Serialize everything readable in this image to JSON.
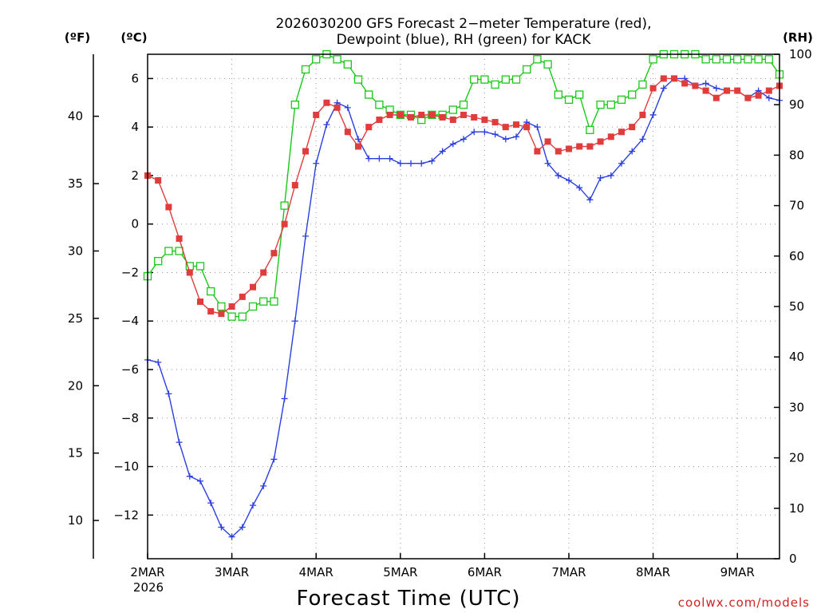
{
  "chart_data": {
    "type": "line",
    "title_line1": "2026030200 GFS Forecast 2−meter Temperature (red),",
    "title_line2": "Dewpoint (blue), RH (green) for KACK",
    "xlabel": "Forecast Time (UTC)",
    "year_label": "2026",
    "credit": "coolwx.com/models",
    "unit_labels": {
      "fahrenheit": "(ºF)",
      "celsius": "(ºC)",
      "rh": "(RH)"
    },
    "x_ticks": [
      {
        "day": 0,
        "label": "2MAR"
      },
      {
        "day": 1,
        "label": "3MAR"
      },
      {
        "day": 2,
        "label": "4MAR"
      },
      {
        "day": 3,
        "label": "5MAR"
      },
      {
        "day": 4,
        "label": "6MAR"
      },
      {
        "day": 5,
        "label": "7MAR"
      },
      {
        "day": 6,
        "label": "8MAR"
      },
      {
        "day": 7,
        "label": "9MAR"
      }
    ],
    "xlim_days": [
      0,
      7.5
    ],
    "ylim_celsius": [
      -13.8,
      7.0
    ],
    "ylim_rh": [
      0,
      100
    ],
    "y_ticks_celsius": [
      6,
      4,
      2,
      0,
      -2,
      -4,
      -6,
      -8,
      -10,
      -12
    ],
    "y_tick_labels_celsius": [
      "6",
      "4",
      "2",
      "0",
      "−2",
      "−4",
      "−6",
      "−8",
      "−10",
      "−12"
    ],
    "y_ticks_fahrenheit": [
      10,
      15,
      20,
      25,
      30,
      35,
      40
    ],
    "y_ticks_rh": [
      0,
      10,
      20,
      30,
      40,
      50,
      60,
      70,
      80,
      90,
      100
    ],
    "series": [
      {
        "name": "Temperature",
        "unit": "C",
        "color": "#e03c3c",
        "marker": "filled-square",
        "x": [
          0,
          0.125,
          0.25,
          0.375,
          0.5,
          0.625,
          0.75,
          0.875,
          1,
          1.125,
          1.25,
          1.375,
          1.5,
          1.625,
          1.75,
          1.875,
          2,
          2.125,
          2.25,
          2.375,
          2.5,
          2.625,
          2.75,
          2.875,
          3,
          3.125,
          3.25,
          3.375,
          3.5,
          3.625,
          3.75,
          3.875,
          4,
          4.125,
          4.25,
          4.375,
          4.5,
          4.625,
          4.75,
          4.875,
          5,
          5.125,
          5.25,
          5.375,
          5.5,
          5.625,
          5.75,
          5.875,
          6,
          6.125,
          6.25,
          6.375,
          6.5,
          6.625,
          6.75,
          6.875,
          7,
          7.125,
          7.25,
          7.375,
          7.5
        ],
        "values": [
          2.0,
          1.8,
          0.7,
          -0.6,
          -2.0,
          -3.2,
          -3.6,
          -3.7,
          -3.4,
          -3.0,
          -2.6,
          -2.0,
          -1.2,
          0.0,
          1.6,
          3.0,
          4.5,
          5.0,
          4.8,
          3.8,
          3.2,
          4.0,
          4.3,
          4.5,
          4.5,
          4.4,
          4.5,
          4.5,
          4.4,
          4.3,
          4.5,
          4.4,
          4.3,
          4.2,
          4.0,
          4.1,
          4.0,
          3.0,
          3.4,
          3.0,
          3.1,
          3.2,
          3.2,
          3.4,
          3.6,
          3.8,
          4.0,
          4.5,
          5.6,
          6.0,
          6.0,
          5.8,
          5.7,
          5.5,
          5.2,
          5.5,
          5.5,
          5.2,
          5.3,
          5.5,
          5.7
        ]
      },
      {
        "name": "Dewpoint",
        "unit": "C",
        "color": "#2a3ee0",
        "marker": "plus",
        "x": [
          0,
          0.125,
          0.25,
          0.375,
          0.5,
          0.625,
          0.75,
          0.875,
          1,
          1.125,
          1.25,
          1.375,
          1.5,
          1.625,
          1.75,
          1.875,
          2,
          2.125,
          2.25,
          2.375,
          2.5,
          2.625,
          2.75,
          2.875,
          3,
          3.125,
          3.25,
          3.375,
          3.5,
          3.625,
          3.75,
          3.875,
          4,
          4.125,
          4.25,
          4.375,
          4.5,
          4.625,
          4.75,
          4.875,
          5,
          5.125,
          5.25,
          5.375,
          5.5,
          5.625,
          5.75,
          5.875,
          6,
          6.125,
          6.25,
          6.375,
          6.5,
          6.625,
          6.75,
          6.875,
          7,
          7.125,
          7.25,
          7.375,
          7.5
        ],
        "values": [
          -5.6,
          -5.7,
          -7.0,
          -9.0,
          -10.4,
          -10.6,
          -11.5,
          -12.5,
          -12.9,
          -12.5,
          -11.6,
          -10.8,
          -9.7,
          -7.2,
          -4.0,
          -0.5,
          2.5,
          4.1,
          5.0,
          4.8,
          3.5,
          2.7,
          2.7,
          2.7,
          2.5,
          2.5,
          2.5,
          2.6,
          3.0,
          3.3,
          3.5,
          3.8,
          3.8,
          3.7,
          3.5,
          3.6,
          4.2,
          4.0,
          2.5,
          2.0,
          1.8,
          1.5,
          1.0,
          1.9,
          2.0,
          2.5,
          3.0,
          3.5,
          4.5,
          5.6,
          6.0,
          6.0,
          5.7,
          5.8,
          5.6,
          5.5,
          5.5,
          5.2,
          5.5,
          5.2,
          5.1
        ]
      },
      {
        "name": "RH",
        "unit": "%",
        "color": "#19c819",
        "marker": "open-square",
        "x": [
          0,
          0.125,
          0.25,
          0.375,
          0.5,
          0.625,
          0.75,
          0.875,
          1,
          1.125,
          1.25,
          1.375,
          1.5,
          1.625,
          1.75,
          1.875,
          2,
          2.125,
          2.25,
          2.375,
          2.5,
          2.625,
          2.75,
          2.875,
          3,
          3.125,
          3.25,
          3.375,
          3.5,
          3.625,
          3.75,
          3.875,
          4,
          4.125,
          4.25,
          4.375,
          4.5,
          4.625,
          4.75,
          4.875,
          5,
          5.125,
          5.25,
          5.375,
          5.5,
          5.625,
          5.75,
          5.875,
          6,
          6.125,
          6.25,
          6.375,
          6.5,
          6.625,
          6.75,
          6.875,
          7,
          7.125,
          7.25,
          7.375,
          7.5
        ],
        "values": [
          56,
          59,
          61,
          61,
          58,
          58,
          53,
          50,
          48,
          48,
          50,
          51,
          51,
          70,
          90,
          97,
          99,
          100,
          99,
          98,
          95,
          92,
          90,
          89,
          88,
          88,
          87,
          88,
          88,
          89,
          90,
          95,
          95,
          94,
          95,
          95,
          97,
          99,
          98,
          92,
          91,
          92,
          85,
          90,
          90,
          91,
          92,
          94,
          99,
          100,
          100,
          100,
          100,
          99,
          99,
          99,
          99,
          99,
          99,
          99,
          96
        ]
      }
    ]
  }
}
